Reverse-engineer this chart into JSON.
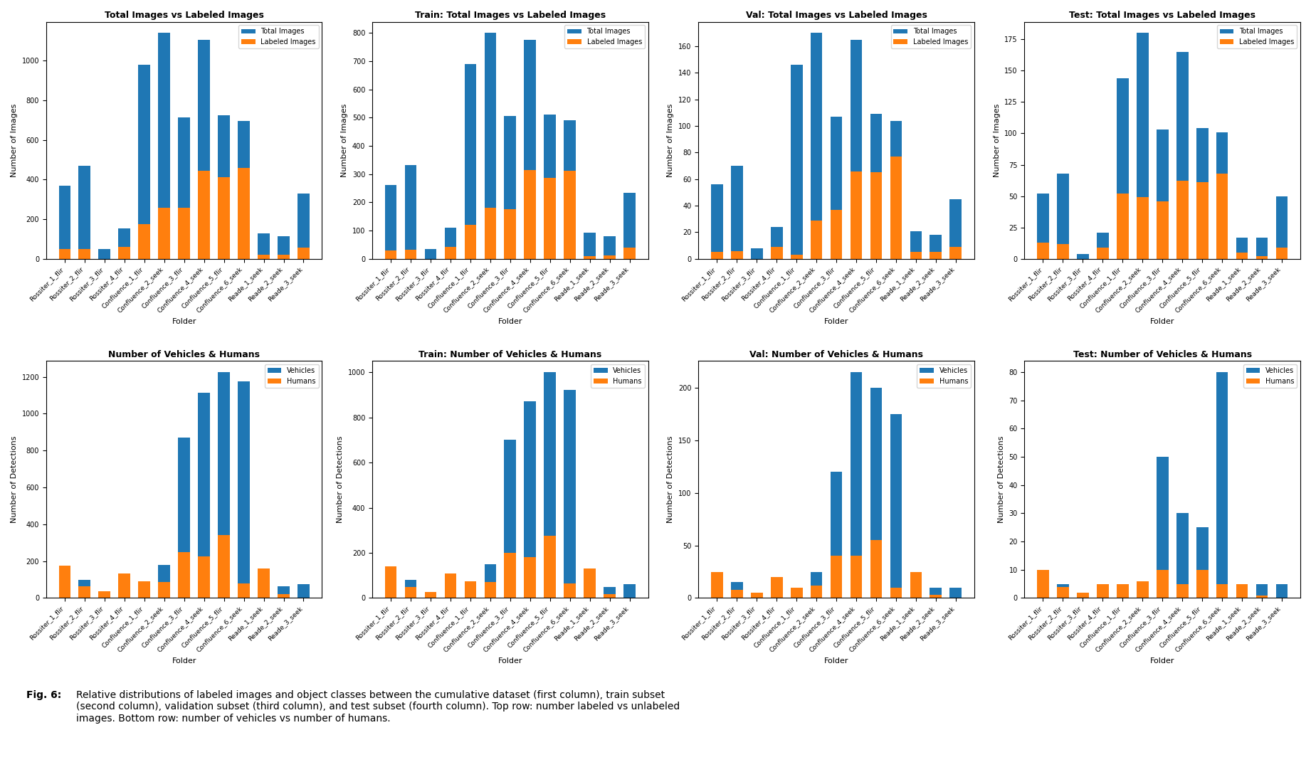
{
  "folders": [
    "Rossiter_1_flir",
    "Rossiter_2_flir",
    "Rossiter_3_flir",
    "Rossiter_4_flir",
    "Confluence_1_flir",
    "Confluence_2_seek",
    "Confluence_3_flir",
    "Confluence_4_seek",
    "Confluence_5_flir",
    "Confluence_6_seek",
    "Reade_1_seek",
    "Reade_2_seek",
    "Reade_3_seek"
  ],
  "all_total": [
    370,
    470,
    48,
    155,
    980,
    1140,
    715,
    1105,
    725,
    695,
    130,
    115,
    330
  ],
  "all_labeled": [
    48,
    50,
    0,
    60,
    175,
    258,
    258,
    443,
    413,
    458,
    20,
    20,
    58
  ],
  "train_total": [
    262,
    332,
    36,
    110,
    690,
    800,
    505,
    775,
    512,
    490,
    92,
    80,
    235
  ],
  "train_labeled": [
    30,
    32,
    0,
    42,
    120,
    180,
    175,
    315,
    287,
    313,
    10,
    13,
    40
  ],
  "val_total": [
    56,
    70,
    8,
    24,
    146,
    170,
    107,
    165,
    109,
    104,
    21,
    18,
    45
  ],
  "val_labeled": [
    5,
    6,
    0,
    9,
    3,
    29,
    37,
    66,
    65,
    77,
    5,
    5,
    9
  ],
  "test_total": [
    52,
    68,
    4,
    21,
    144,
    180,
    103,
    165,
    104,
    101,
    17,
    17,
    50
  ],
  "test_labeled": [
    13,
    12,
    0,
    9,
    52,
    49,
    46,
    62,
    61,
    68,
    5,
    2,
    9
  ],
  "all_vehicles": [
    40,
    100,
    5,
    55,
    60,
    180,
    870,
    1115,
    1225,
    1175,
    5,
    65,
    75
  ],
  "all_humans": [
    175,
    62,
    35,
    135,
    90,
    88,
    250,
    225,
    340,
    80,
    160,
    20,
    0
  ],
  "train_vehicles": [
    30,
    80,
    4,
    45,
    50,
    150,
    700,
    870,
    1000,
    920,
    4,
    50,
    60
  ],
  "train_humans": [
    140,
    50,
    28,
    110,
    75,
    70,
    200,
    180,
    275,
    65,
    130,
    16,
    0
  ],
  "val_vehicles": [
    5,
    15,
    1,
    7,
    8,
    25,
    120,
    215,
    200,
    175,
    0,
    10,
    10
  ],
  "val_humans": [
    25,
    8,
    5,
    20,
    10,
    12,
    40,
    40,
    55,
    10,
    25,
    3,
    0
  ],
  "test_vehicles": [
    5,
    5,
    0,
    3,
    2,
    5,
    50,
    30,
    25,
    80,
    1,
    5,
    5
  ],
  "test_humans": [
    10,
    4,
    2,
    5,
    5,
    6,
    10,
    5,
    10,
    5,
    5,
    1,
    0
  ],
  "color_blue": "#1f77b4",
  "color_orange": "#ff7f0e",
  "titles_row1": [
    "Total Images vs Labeled Images",
    "Train: Total Images vs Labeled Images",
    "Val: Total Images vs Labeled Images",
    "Test: Total Images vs Labeled Images"
  ],
  "titles_row2": [
    "Number of Vehicles & Humans",
    "Train: Number of Vehicles & Humans",
    "Val: Number of Vehicles & Humans",
    "Test: Number of Vehicles & Humans"
  ],
  "ylabel_images": "Number of Images",
  "ylabel_detections": "Number of Detections",
  "xlabel": "Folder",
  "legend_total": "Total Images",
  "legend_labeled": "Labeled Images",
  "legend_vehicles": "Vehicles",
  "legend_humans": "Humans",
  "caption_bold": "Fig. 6: ",
  "caption_normal": "Relative distributions of labeled images and object classes between the cumulative dataset (first column), train subset\n(second column), validation subset (third column), and test subset (fourth column). Top row: number labeled vs unlabeled\nimages. Bottom row: number of vehicles vs number of humans."
}
